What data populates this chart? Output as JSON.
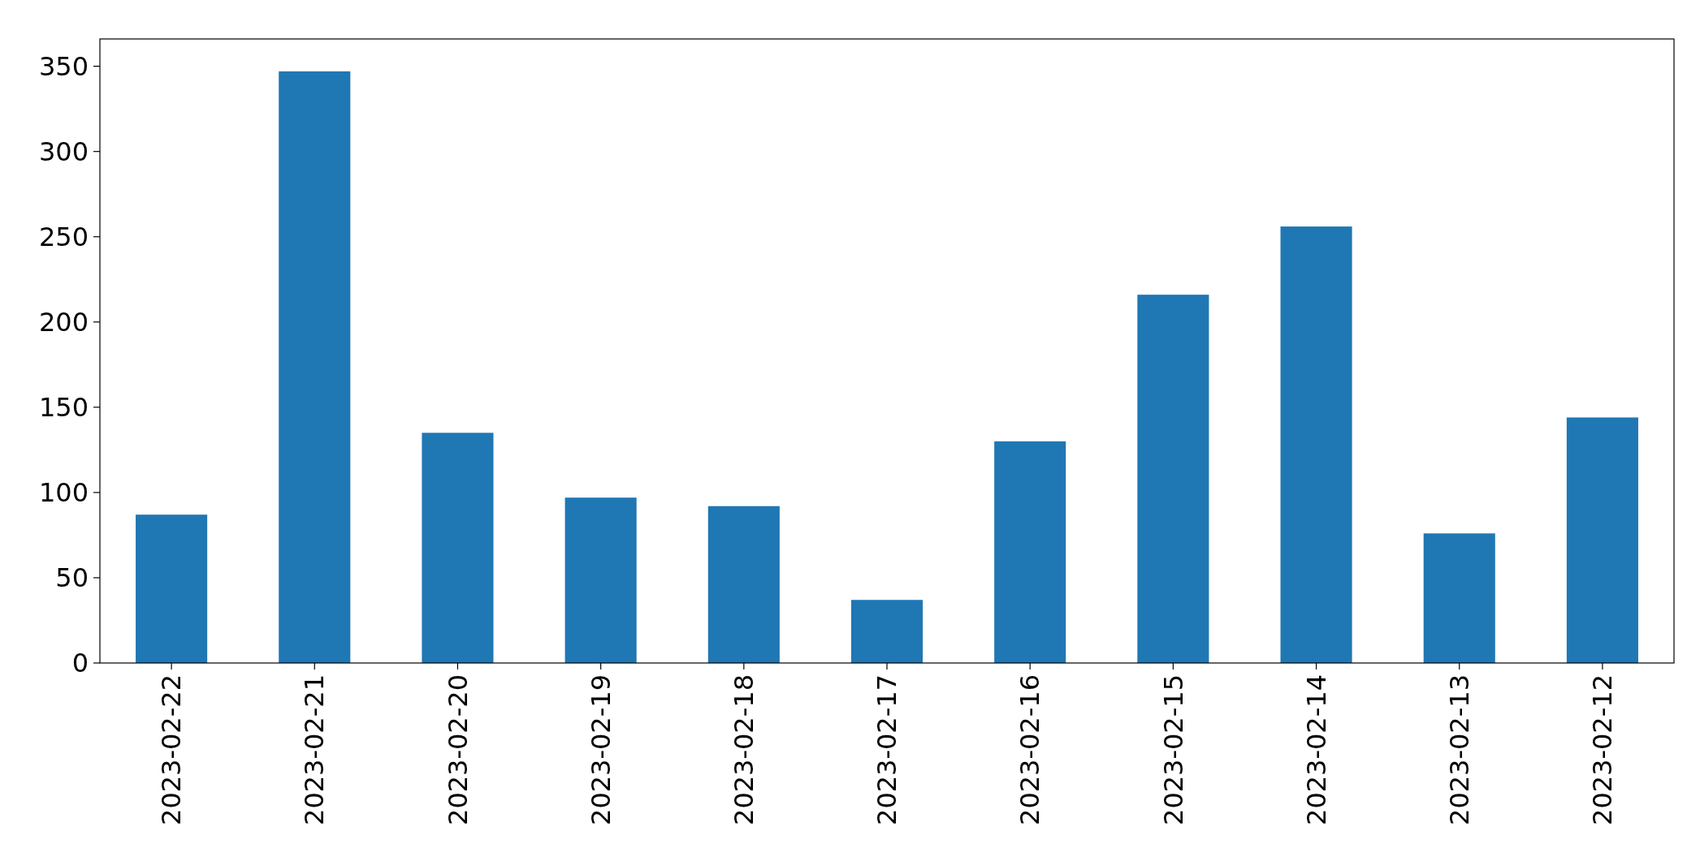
{
  "chart_data": {
    "type": "bar",
    "categories": [
      "2023-02-22",
      "2023-02-21",
      "2023-02-20",
      "2023-02-19",
      "2023-02-18",
      "2023-02-17",
      "2023-02-16",
      "2023-02-15",
      "2023-02-14",
      "2023-02-13",
      "2023-02-12"
    ],
    "values": [
      87,
      347,
      135,
      97,
      92,
      37,
      130,
      216,
      256,
      76,
      144
    ],
    "color": "#1f77b4",
    "ylim": [
      0,
      366
    ],
    "yticks": [
      0,
      50,
      100,
      150,
      200,
      250,
      300,
      350
    ],
    "grid": false
  }
}
